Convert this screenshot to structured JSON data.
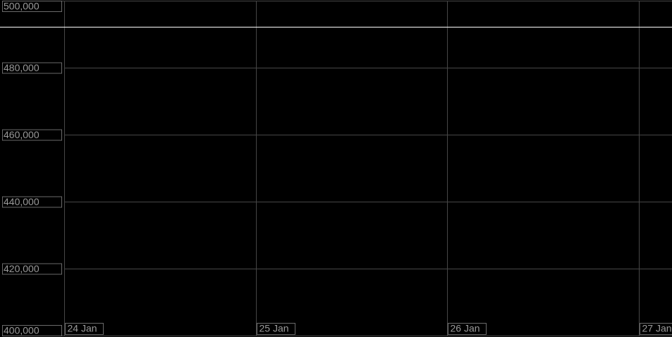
{
  "chart_data": {
    "type": "line",
    "categories": [
      "24 Jan",
      "25 Jan",
      "26 Jan",
      "27 Jan"
    ],
    "ylim": [
      400000,
      500000
    ],
    "yticks": [
      {
        "value": 400000,
        "label": "400,000"
      },
      {
        "value": 420000,
        "label": "420,000"
      },
      {
        "value": 440000,
        "label": "440,000"
      },
      {
        "value": 460000,
        "label": "460,000"
      },
      {
        "value": 480000,
        "label": "480,000"
      },
      {
        "value": 500000,
        "label": "500,000"
      }
    ],
    "grid": true,
    "hline": {
      "value": 492000,
      "color": "#ffffff"
    }
  }
}
